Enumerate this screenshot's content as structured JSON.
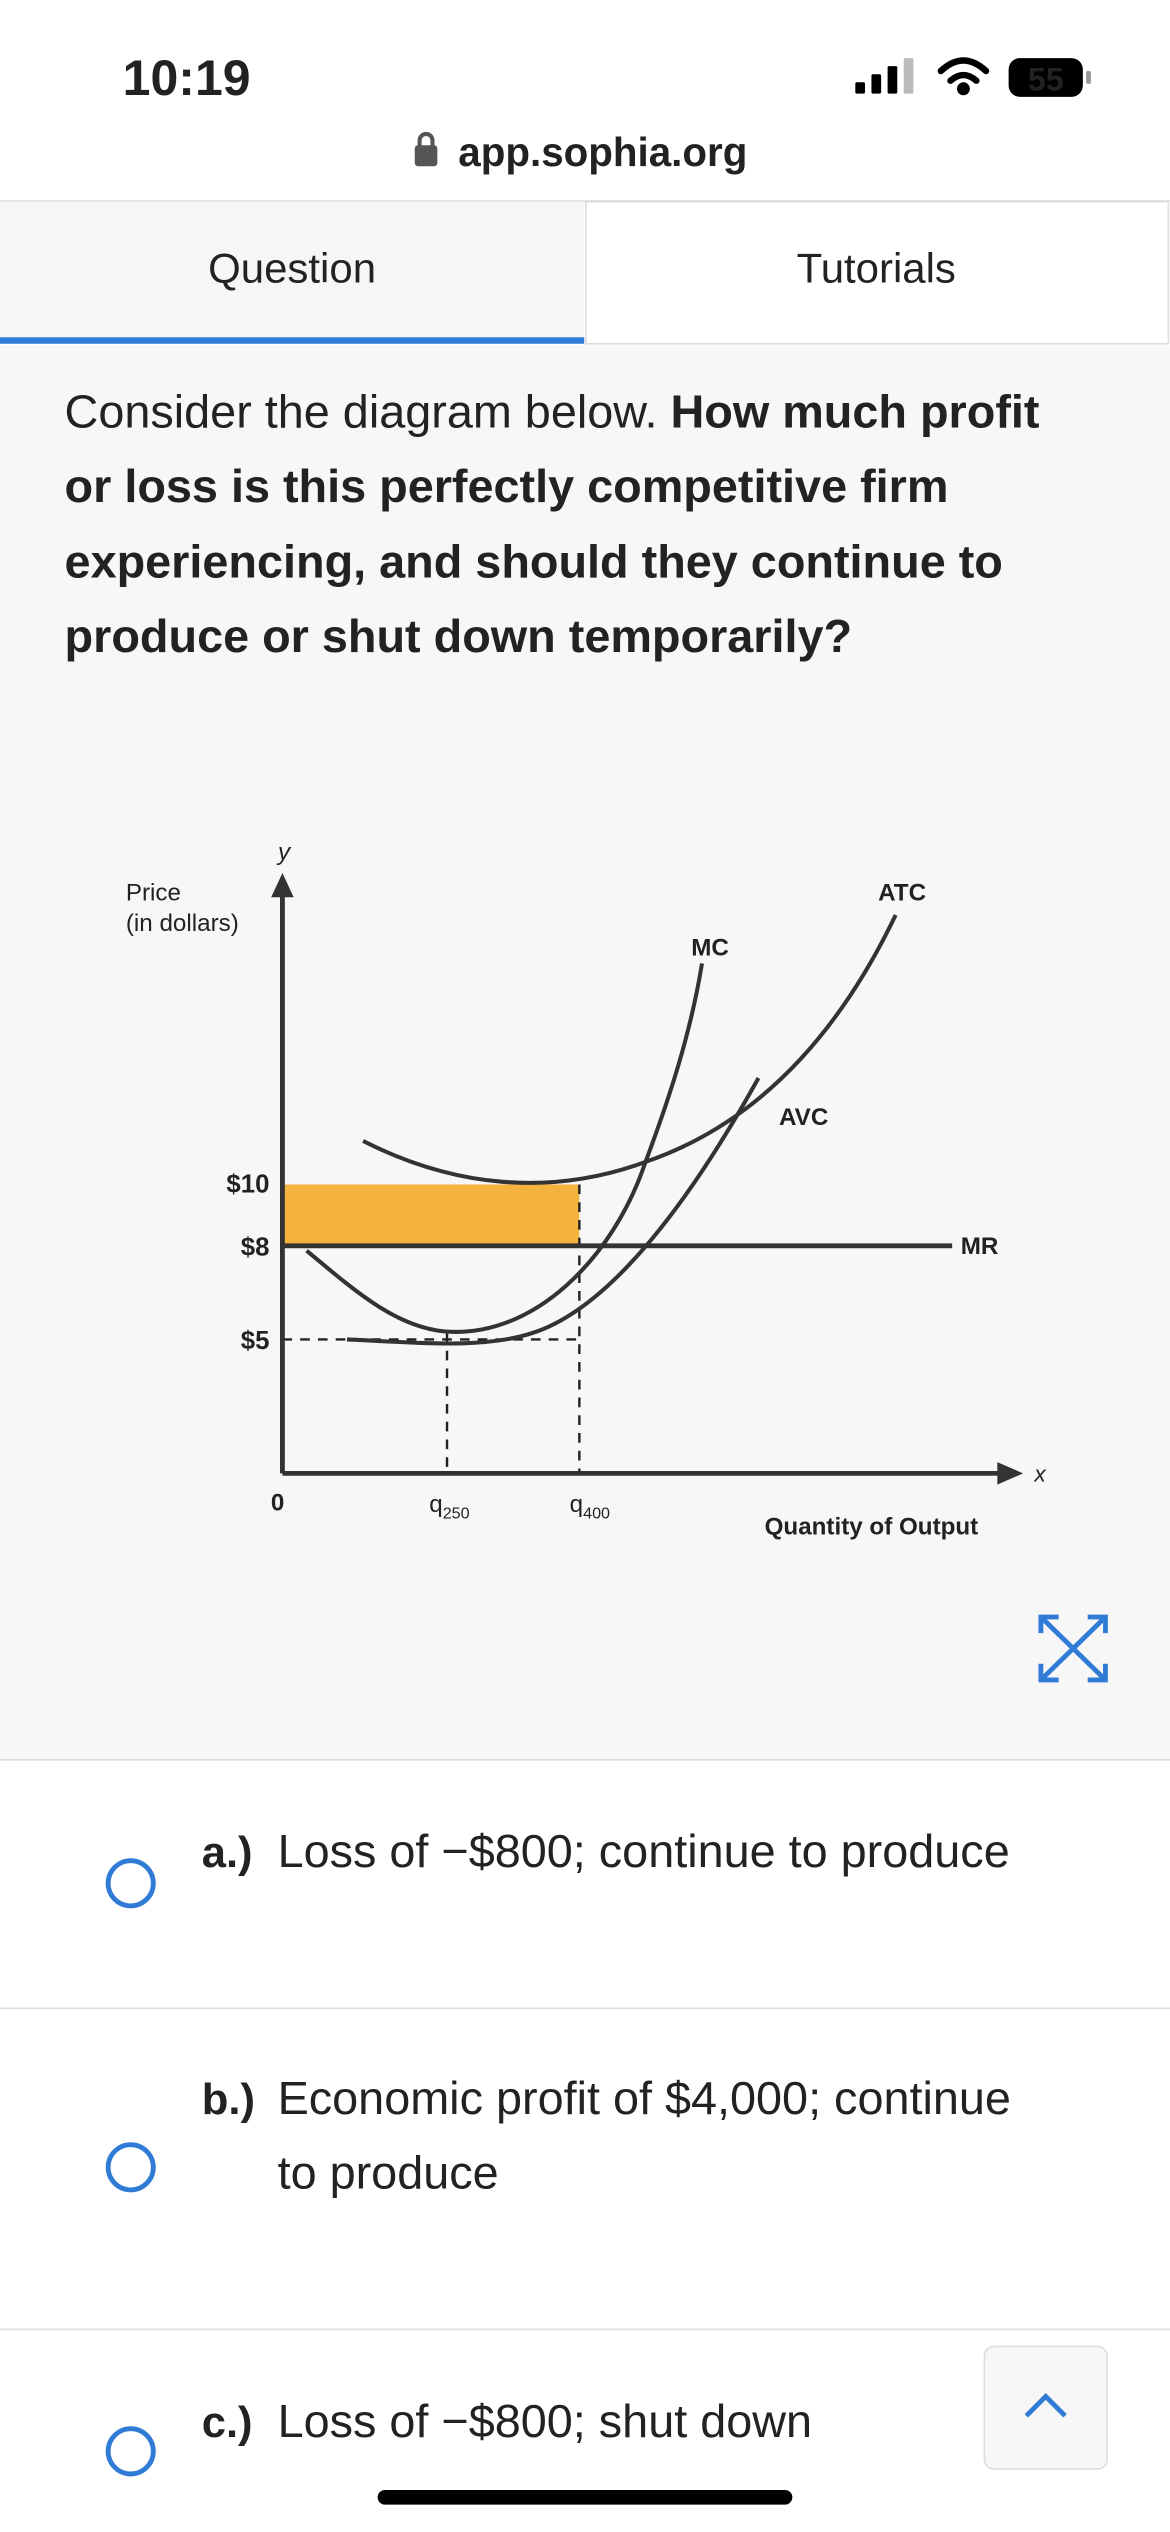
{
  "status_bar": {
    "time": "10:19",
    "battery": "55"
  },
  "address_bar": {
    "url": "app.sophia.org"
  },
  "tabs": [
    "Question",
    "Tutorials"
  ],
  "question": {
    "intro": "Consider the diagram below.",
    "bold_lines": [
      "How much profit",
      "or loss is this perfectly competitive firm",
      "experiencing, and should they continue to",
      "produce or shut down temporarily?"
    ]
  },
  "diagram": {
    "y_axis_letter": "y",
    "y_axis_label": [
      "Price",
      "(in dollars)"
    ],
    "price_labels": [
      "$10",
      "$8",
      "$5"
    ],
    "origin": "0",
    "quantity_labels": [
      {
        "base": "q",
        "sub": "250"
      },
      {
        "base": "q",
        "sub": "400"
      }
    ],
    "x_axis_label": "Quantity of Output",
    "x_axis_letter": "x",
    "curves": [
      "MC",
      "ATC",
      "AVC",
      "MR"
    ]
  },
  "options": [
    {
      "letter": "a.)",
      "lines": [
        "Loss of −$800; continue to produce"
      ]
    },
    {
      "letter": "b.)",
      "lines": [
        "Economic profit of $4,000; continue",
        "to produce"
      ]
    },
    {
      "letter": "c.)",
      "lines": [
        "Loss of −$800; shut down"
      ]
    }
  ]
}
